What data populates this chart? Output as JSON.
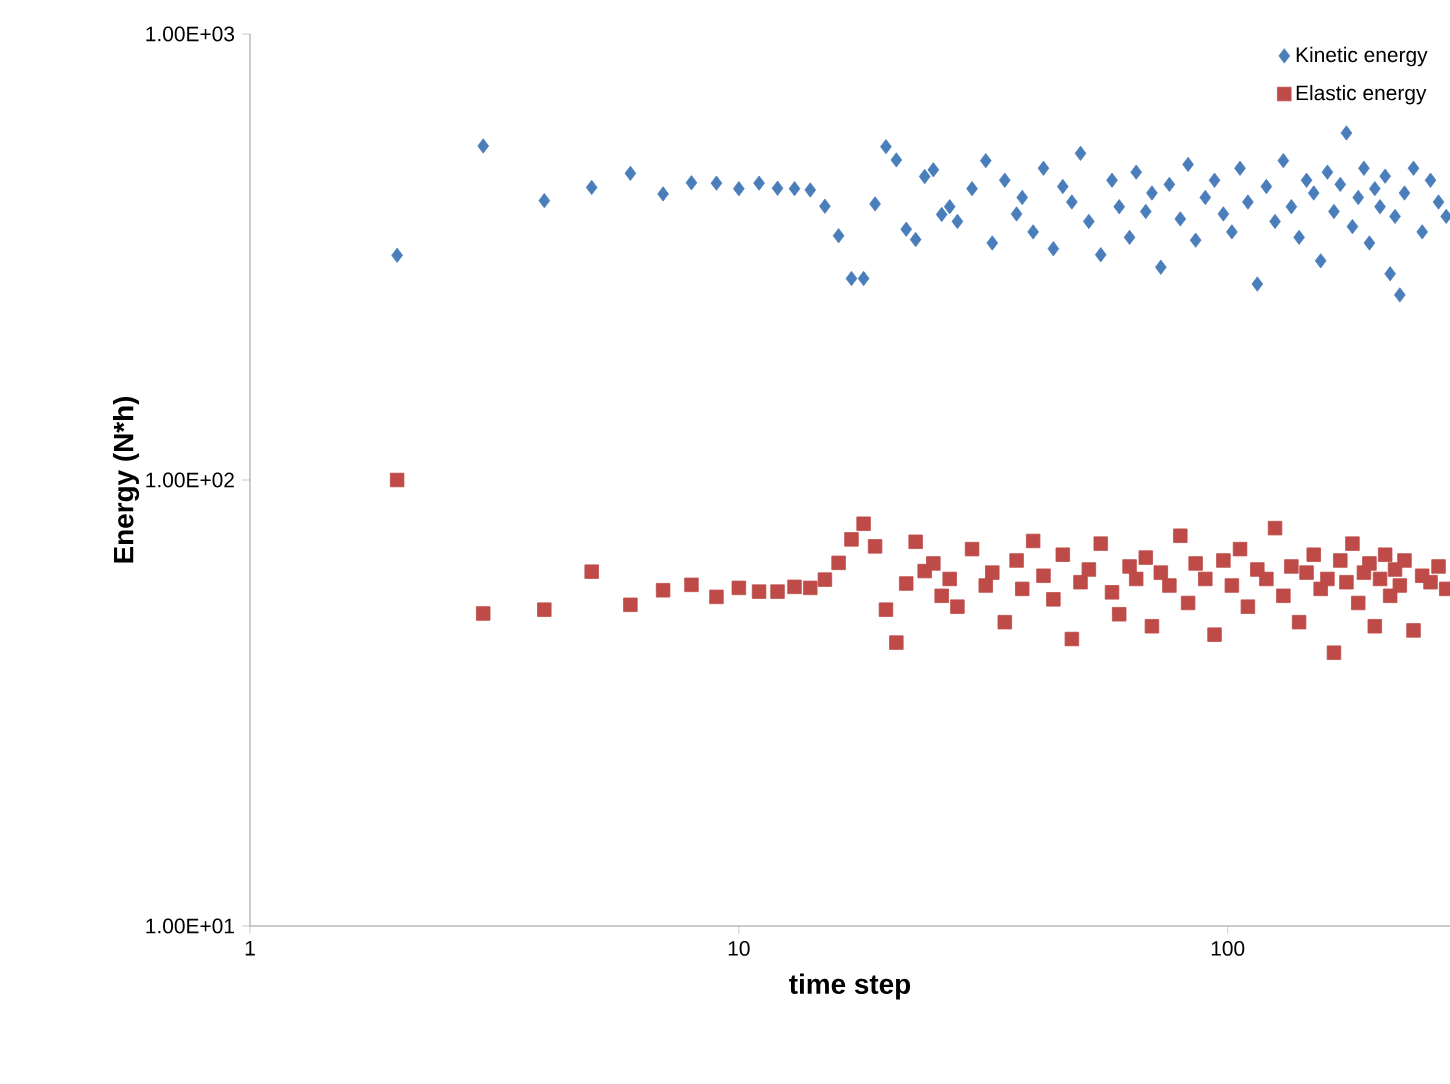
{
  "chart_data": {
    "type": "scatter",
    "xlabel": "time step",
    "ylabel": "Energy (N*h)",
    "log": "xy",
    "grid": false,
    "legend": "top right",
    "xlim": [
      1,
      285
    ],
    "xticks": [
      1,
      10,
      100
    ],
    "ylim": [
      10,
      1000
    ],
    "yticks": [
      {
        "value": 10,
        "label": "1.00E+01"
      },
      {
        "value": 100,
        "label": "1.00E+02"
      },
      {
        "value": 1000,
        "label": "1.00E+03"
      }
    ],
    "x": [
      2,
      3,
      4,
      5,
      6,
      7,
      8,
      9,
      10,
      11,
      12,
      13,
      14,
      15,
      16,
      17,
      18,
      19,
      20,
      21,
      22,
      23,
      24,
      25,
      26,
      27,
      28,
      30,
      32,
      33,
      35,
      37,
      38,
      40,
      42,
      44,
      46,
      48,
      50,
      52,
      55,
      58,
      60,
      63,
      65,
      68,
      70,
      73,
      76,
      80,
      83,
      86,
      90,
      94,
      98,
      102,
      106,
      110,
      115,
      120,
      125,
      130,
      135,
      140,
      145,
      150,
      155,
      160,
      165,
      170,
      175,
      180,
      185,
      190,
      195,
      200,
      205,
      210,
      215,
      220,
      225,
      230,
      240,
      250,
      260,
      270,
      280
    ],
    "series": [
      {
        "name": "Kinetic energy",
        "color": "#4a7ebb",
        "marker": "diamond",
        "values": [
          319,
          561,
          423,
          453,
          487,
          438,
          464,
          463,
          450,
          463,
          451,
          450,
          447,
          411,
          353,
          283,
          283,
          416,
          559,
          522,
          365,
          346,
          479,
          496,
          394,
          410,
          380,
          450,
          520,
          340,
          470,
          395,
          430,
          360,
          500,
          330,
          455,
          420,
          540,
          380,
          320,
          470,
          410,
          350,
          490,
          400,
          440,
          300,
          460,
          385,
          510,
          345,
          430,
          470,
          395,
          360,
          500,
          420,
          275,
          455,
          380,
          520,
          410,
          350,
          470,
          440,
          310,
          490,
          400,
          460,
          600,
          370,
          430,
          500,
          340,
          450,
          410,
          480,
          290,
          390,
          260,
          440,
          500,
          360,
          470,
          420,
          390
        ]
      },
      {
        "name": "Elastic energy",
        "color": "#be4b48",
        "marker": "square",
        "values": [
          100,
          50.2,
          51.2,
          62.3,
          52.5,
          56.6,
          58.2,
          54.7,
          57.3,
          56.2,
          56.2,
          57.6,
          57.3,
          59.8,
          65.2,
          73.6,
          79.8,
          71.0,
          51.2,
          43.2,
          58.6,
          72.7,
          62.5,
          65,
          55,
          60,
          52,
          70,
          58,
          62,
          48,
          66,
          57,
          73,
          61,
          54,
          68,
          44,
          59,
          63,
          72,
          56,
          50,
          64,
          60,
          67,
          47,
          62,
          58,
          75,
          53,
          65,
          60,
          45,
          66,
          58,
          70,
          52,
          63,
          60,
          78,
          55,
          64,
          48,
          62,
          68,
          57,
          60,
          41,
          66,
          59,
          72,
          53,
          62,
          65,
          47,
          60,
          68,
          55,
          63,
          58,
          66,
          46,
          61,
          59,
          64,
          57
        ]
      }
    ]
  }
}
